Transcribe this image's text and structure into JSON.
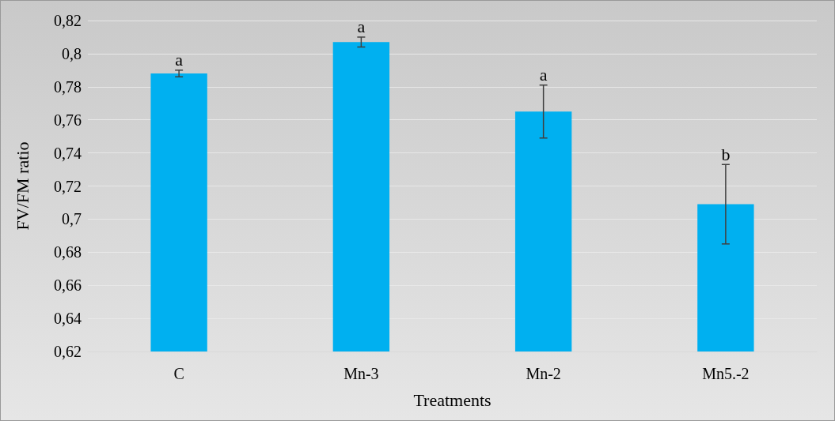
{
  "chart_data": {
    "type": "bar",
    "xlabel": "Treatments",
    "ylabel": "FV/FM ratio",
    "categories": [
      "C",
      "Mn-3",
      "Mn-2",
      "Mn5.-2"
    ],
    "values": [
      0.788,
      0.807,
      0.765,
      0.709
    ],
    "errors": [
      0.002,
      0.003,
      0.016,
      0.024
    ],
    "color": "#00b0f0",
    "ylim": [
      0.62,
      0.82
    ],
    "yticks": [
      {
        "value": 0.62,
        "label": "0,62"
      },
      {
        "value": 0.64,
        "label": "0,64"
      },
      {
        "value": 0.66,
        "label": "0,66"
      },
      {
        "value": 0.68,
        "label": "0,68"
      },
      {
        "value": 0.7,
        "label": "0,7"
      },
      {
        "value": 0.72,
        "label": "0,72"
      },
      {
        "value": 0.74,
        "label": "0,74"
      },
      {
        "value": 0.76,
        "label": "0,76"
      },
      {
        "value": 0.78,
        "label": "0,78"
      },
      {
        "value": 0.8,
        "label": "0,8"
      },
      {
        "value": 0.82,
        "label": "0,82"
      }
    ],
    "annotations": [
      {
        "text": "a",
        "x": "C",
        "y": 0.79
      },
      {
        "text": "a",
        "x": "Mn-3",
        "y": 0.81
      },
      {
        "text": "a",
        "x": "Mn-2",
        "y": 0.781
      },
      {
        "text": "b",
        "x": "Mn5.-2",
        "y": 0.733
      }
    ],
    "grid": "y"
  }
}
